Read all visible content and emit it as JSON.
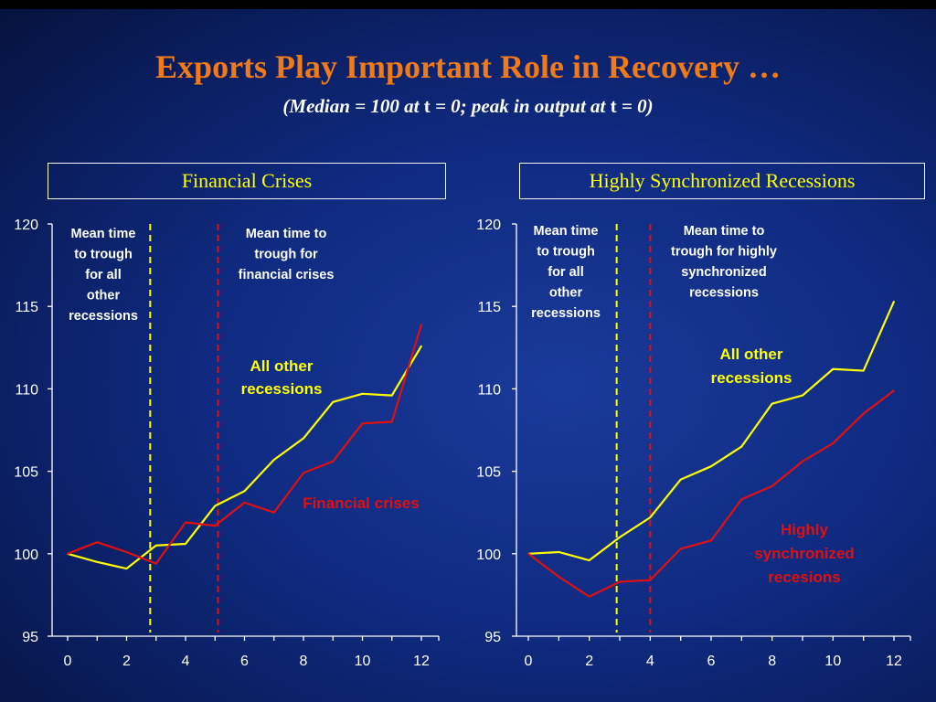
{
  "title": "Exports Play Important Role in Recovery …",
  "subtitle": {
    "a": "(Median = 100 at ",
    "t1": "t",
    "b": " = 0; peak in output at ",
    "t2": "t",
    "c": " = 0)"
  },
  "colors": {
    "title": "#f07a18",
    "yellow": "#ffff00",
    "red": "#e01010",
    "bg": "#0f2a80"
  },
  "chart_data": [
    {
      "type": "line",
      "title": "Financial Crises",
      "ylim": [
        95,
        120
      ],
      "xlim": [
        0,
        12
      ],
      "xticks": [
        0,
        2,
        4,
        6,
        8,
        10,
        12
      ],
      "yticks": [
        95,
        100,
        105,
        110,
        115,
        120
      ],
      "x": [
        0,
        1,
        2,
        3,
        4,
        5,
        6,
        7,
        8,
        9,
        10,
        11,
        12
      ],
      "series": [
        {
          "name": "All other recessions",
          "color": "#ffff00",
          "values": [
            100.0,
            99.5,
            99.1,
            100.5,
            100.6,
            102.9,
            103.8,
            105.7,
            107.0,
            109.2,
            109.7,
            109.6,
            112.6
          ]
        },
        {
          "name": "Financial crises",
          "color": "#e01010",
          "values": [
            100.0,
            100.7,
            100.1,
            99.4,
            101.9,
            101.7,
            103.1,
            102.5,
            104.9,
            105.6,
            107.9,
            108.0,
            113.9
          ]
        }
      ],
      "vlines": [
        {
          "x": 2.8,
          "color": "#ffff00"
        },
        {
          "x": 5.1,
          "color": "#e01010"
        }
      ],
      "annotations": [
        {
          "lines": [
            "Mean time",
            "to trough",
            "for all",
            "other",
            "recessions"
          ]
        },
        {
          "lines": [
            "Mean time to",
            "trough for",
            "financial crises"
          ]
        }
      ],
      "series_labels": [
        {
          "lines": [
            "All other",
            "recessions"
          ],
          "color": "#ffff00"
        },
        {
          "lines": [
            "Financial crises"
          ],
          "color": "#e01010"
        }
      ]
    },
    {
      "type": "line",
      "title": "Highly Synchronized Recessions",
      "ylim": [
        95,
        120
      ],
      "xlim": [
        0,
        12
      ],
      "xticks": [
        0,
        2,
        4,
        6,
        8,
        10,
        12
      ],
      "yticks": [
        95,
        100,
        105,
        110,
        115,
        120
      ],
      "x": [
        0,
        1,
        2,
        3,
        4,
        5,
        6,
        7,
        8,
        9,
        10,
        11,
        12
      ],
      "series": [
        {
          "name": "All other recessions",
          "color": "#ffff00",
          "values": [
            100.0,
            100.1,
            99.6,
            101.0,
            102.2,
            104.5,
            105.3,
            106.5,
            109.1,
            109.6,
            111.2,
            111.1,
            115.3
          ]
        },
        {
          "name": "Highly synchronized recesions",
          "color": "#e01010",
          "values": [
            100.0,
            98.6,
            97.4,
            98.3,
            98.4,
            100.3,
            100.8,
            103.3,
            104.1,
            105.6,
            106.7,
            108.5,
            109.9
          ]
        }
      ],
      "vlines": [
        {
          "x": 2.9,
          "color": "#ffff00"
        },
        {
          "x": 4.0,
          "color": "#e01010"
        }
      ],
      "annotations": [
        {
          "lines": [
            "Mean time",
            "to trough",
            "for all",
            "other",
            "recessions"
          ]
        },
        {
          "lines": [
            "Mean time to",
            "trough for highly",
            "synchronized",
            "recessions"
          ]
        }
      ],
      "series_labels": [
        {
          "lines": [
            "All other",
            "recessions"
          ],
          "color": "#ffff00"
        },
        {
          "lines": [
            "Highly",
            "synchronized",
            "recesions"
          ],
          "color": "#e01010"
        }
      ]
    }
  ]
}
